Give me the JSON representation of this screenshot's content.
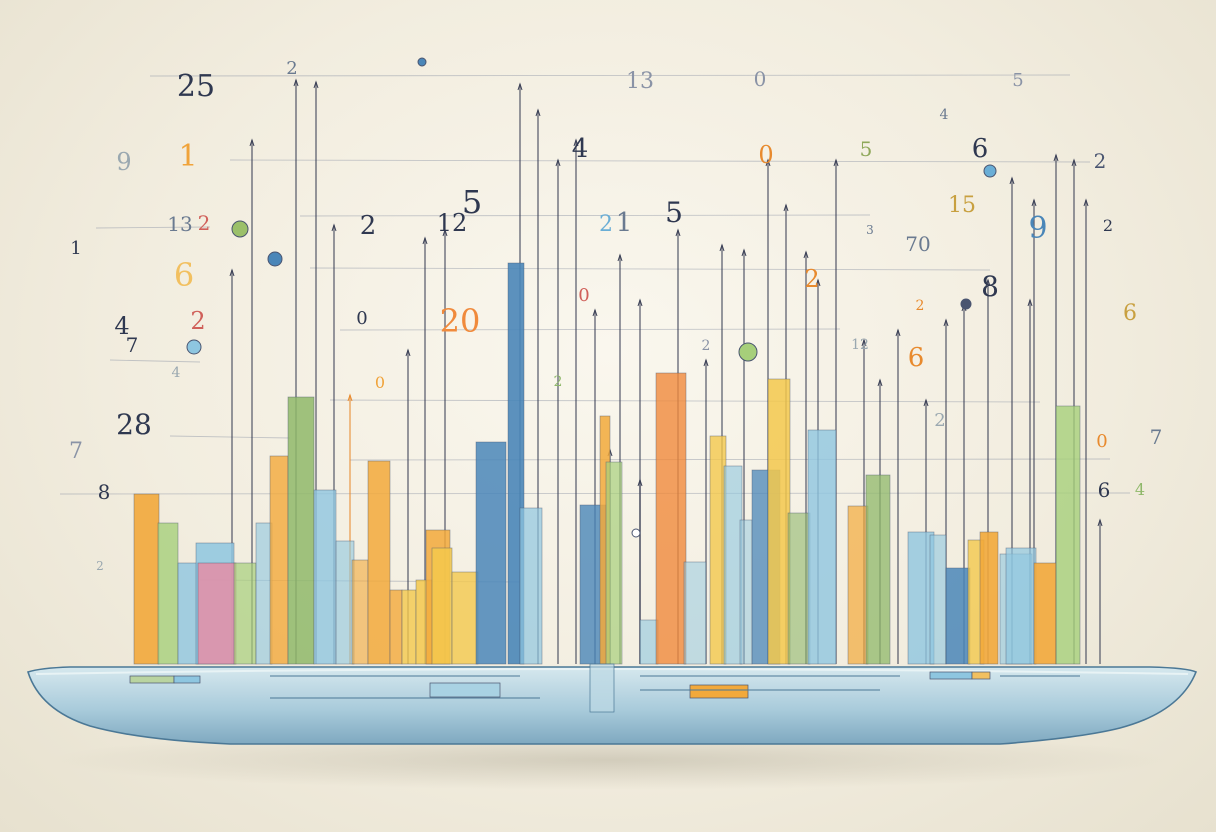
{
  "palette": {
    "background": "#f2eddf",
    "ink": "#3a3f55",
    "platform_top": "#cfe3ea",
    "platform_side": "#8fb8cc",
    "bar_colors": [
      "#f2a93b",
      "#8fb86a",
      "#8ec6e0",
      "#e98aa2",
      "#4a86b8",
      "#f3c84c",
      "#a6cf7a",
      "#f08a3c",
      "#6aaed6"
    ]
  },
  "floating_digits": [
    {
      "text": "25",
      "color": "#2f3850"
    },
    {
      "text": "2",
      "color": "#6a7a90"
    },
    {
      "text": "13",
      "color": "#8a93a6"
    },
    {
      "text": "0",
      "color": "#8a93a6"
    },
    {
      "text": "5",
      "color": "#8a93a6"
    },
    {
      "text": "4",
      "color": "#2f3850"
    },
    {
      "text": "0",
      "color": "#e88a2e"
    },
    {
      "text": "5",
      "color": "#8fa85a"
    },
    {
      "text": "6",
      "color": "#2f3850"
    },
    {
      "text": "2",
      "color": "#4a5570"
    },
    {
      "text": "4",
      "color": "#6a7a90"
    },
    {
      "text": "9",
      "color": "#9aa8b0"
    },
    {
      "text": "1",
      "color": "#f0a33a"
    },
    {
      "text": "2",
      "color": "#d0605a"
    },
    {
      "text": "1",
      "color": "#2f3850"
    },
    {
      "text": "13",
      "color": "#6a7a90"
    },
    {
      "text": "2",
      "color": "#2f3850"
    },
    {
      "text": "12",
      "color": "#2f3850"
    },
    {
      "text": "5",
      "color": "#2f3850"
    },
    {
      "text": "2",
      "color": "#6aaed6"
    },
    {
      "text": "1",
      "color": "#6a7a90"
    },
    {
      "text": "5",
      "color": "#2f3850"
    },
    {
      "text": "15",
      "color": "#c8a040"
    },
    {
      "text": "9",
      "color": "#4a86b8"
    },
    {
      "text": "2",
      "color": "#2f3850"
    },
    {
      "text": "6",
      "color": "#f2c060"
    },
    {
      "text": "3",
      "color": "#6a7a90"
    },
    {
      "text": "70",
      "color": "#6a7a90"
    },
    {
      "text": "0",
      "color": "#d0605a"
    },
    {
      "text": "2",
      "color": "#e88a2e"
    },
    {
      "text": "8",
      "color": "#2f3850"
    },
    {
      "text": "4",
      "color": "#2f3850"
    },
    {
      "text": "7",
      "color": "#2f3850"
    },
    {
      "text": "2",
      "color": "#d0605a"
    },
    {
      "text": "0",
      "color": "#2f3850"
    },
    {
      "text": "20",
      "color": "#f08a3c"
    },
    {
      "text": "6",
      "color": "#c8a040"
    },
    {
      "text": "2",
      "color": "#e88a2e"
    },
    {
      "text": "2",
      "color": "#8a93a6"
    },
    {
      "text": "2",
      "color": "#9aa8b0"
    },
    {
      "text": "12",
      "color": "#9aa8b0"
    },
    {
      "text": "6",
      "color": "#e88a2e"
    },
    {
      "text": "4",
      "color": "#9aa8b0"
    },
    {
      "text": "28",
      "color": "#2f3850"
    },
    {
      "text": "0",
      "color": "#e88a2e"
    },
    {
      "text": "2",
      "color": "#8fb86a"
    },
    {
      "text": "7",
      "color": "#8a93a6"
    },
    {
      "text": "0",
      "color": "#f0a33a"
    },
    {
      "text": "7",
      "color": "#6a7a90"
    },
    {
      "text": "6",
      "color": "#2f3850"
    },
    {
      "text": "8",
      "color": "#2f3850"
    },
    {
      "text": "4",
      "color": "#8fb86a"
    },
    {
      "text": "2",
      "color": "#9aa8b0"
    }
  ]
}
